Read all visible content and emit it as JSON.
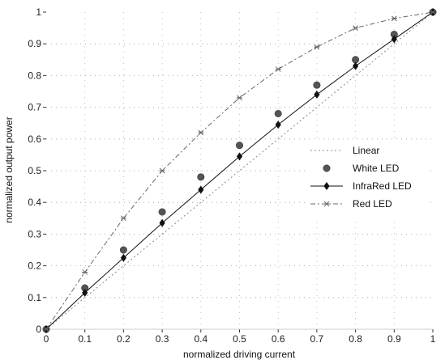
{
  "chart_data": {
    "type": "line",
    "title": "",
    "xlabel": "normalized driving current",
    "ylabel": "normalized output power",
    "xlim": [
      0,
      1
    ],
    "ylim": [
      0,
      1
    ],
    "grid": true,
    "legend_position": "right",
    "x": [
      0,
      0.1,
      0.2,
      0.3,
      0.4,
      0.5,
      0.6,
      0.7,
      0.8,
      0.9,
      1.0
    ],
    "x_ticks": [
      "0",
      "0.1",
      "0.2",
      "0.3",
      "0.4",
      "0.5",
      "0.6",
      "0.7",
      "0.8",
      "0.9",
      "1"
    ],
    "y_ticks": [
      "0",
      "0.1",
      "0.2",
      "0.3",
      "0.4",
      "0.5",
      "0.6",
      "0.7",
      "0.8",
      "0.9",
      "1"
    ],
    "series": [
      {
        "name": "Linear",
        "marker": "none",
        "line": "dotted",
        "color": "#888888",
        "values": [
          0,
          0.1,
          0.2,
          0.3,
          0.4,
          0.5,
          0.6,
          0.7,
          0.8,
          0.9,
          1.0
        ]
      },
      {
        "name": "White LED",
        "marker": "circle",
        "line": "none",
        "color": "#555555",
        "values": [
          0,
          0.13,
          0.25,
          0.37,
          0.48,
          0.58,
          0.68,
          0.77,
          0.85,
          0.93,
          1.0
        ]
      },
      {
        "name": "InfraRed LED",
        "marker": "diamond",
        "line": "solid",
        "color": "#111111",
        "values": [
          0,
          0.115,
          0.225,
          0.335,
          0.44,
          0.545,
          0.645,
          0.74,
          0.83,
          0.915,
          1.0
        ]
      },
      {
        "name": "Red LED",
        "marker": "star",
        "line": "dashdot",
        "color": "#666666",
        "values": [
          0,
          0.18,
          0.35,
          0.5,
          0.62,
          0.73,
          0.82,
          0.89,
          0.95,
          0.98,
          1.0
        ]
      }
    ]
  }
}
